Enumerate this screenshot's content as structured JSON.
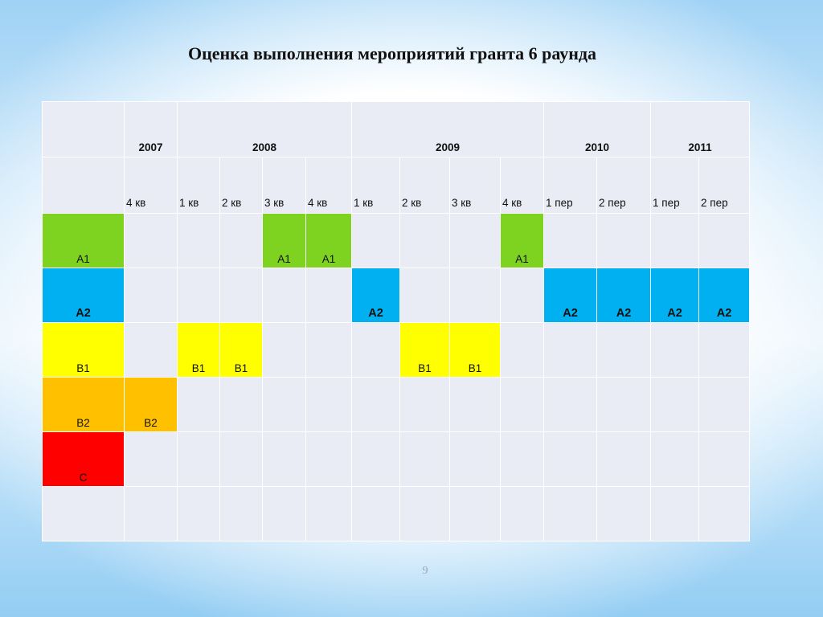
{
  "title": "Оценка выполнения мероприятий гранта 6 раунда",
  "page_number": "9",
  "colors": {
    "A1": "#7ed321",
    "A2": "#00b0f0",
    "B1": "#ffff00",
    "B2": "#ffc000",
    "C": "#ff0000",
    "empty": "#e9ebf5"
  },
  "table": {
    "years": [
      {
        "label": "",
        "span": 1
      },
      {
        "label": "2007",
        "span": 1
      },
      {
        "label": "2008",
        "span": 4
      },
      {
        "label": "2009",
        "span": 4
      },
      {
        "label": "2010",
        "span": 2
      },
      {
        "label": "2011",
        "span": 2
      }
    ],
    "periods": [
      "",
      "4 кв",
      "1 кв",
      "2 кв",
      "3 кв",
      "4 кв",
      "1 кв",
      "2 кв",
      "3 кв",
      "4 кв",
      "1 пер",
      "2 пер",
      "1 пер",
      "2 пер"
    ],
    "rows": [
      {
        "label": "А1",
        "color_key": "A1",
        "bold": false,
        "cells": [
          "",
          "",
          "",
          "А1",
          "А1",
          "",
          "",
          "",
          "А1",
          "",
          "",
          "",
          ""
        ]
      },
      {
        "label": "А2",
        "color_key": "A2",
        "bold": true,
        "cells": [
          "",
          "",
          "",
          "",
          "",
          "А2",
          "",
          "",
          "",
          "А2",
          "А2",
          "А2",
          "А2"
        ]
      },
      {
        "label": "В1",
        "color_key": "B1",
        "bold": false,
        "cells": [
          "",
          "В1",
          "В1",
          "",
          "",
          "",
          "В1",
          "В1",
          "",
          "",
          "",
          "",
          ""
        ]
      },
      {
        "label": "В2",
        "color_key": "B2",
        "bold": false,
        "cells": [
          "В2",
          "",
          "",
          "",
          "",
          "",
          "",
          "",
          "",
          "",
          "",
          "",
          ""
        ]
      },
      {
        "label": "С",
        "color_key": "C",
        "bold": false,
        "cells": [
          "",
          "",
          "",
          "",
          "",
          "",
          "",
          "",
          "",
          "",
          "",
          "",
          ""
        ]
      },
      {
        "label": "",
        "color_key": null,
        "bold": false,
        "cells": [
          "",
          "",
          "",
          "",
          "",
          "",
          "",
          "",
          "",
          "",
          "",
          "",
          ""
        ]
      }
    ]
  }
}
